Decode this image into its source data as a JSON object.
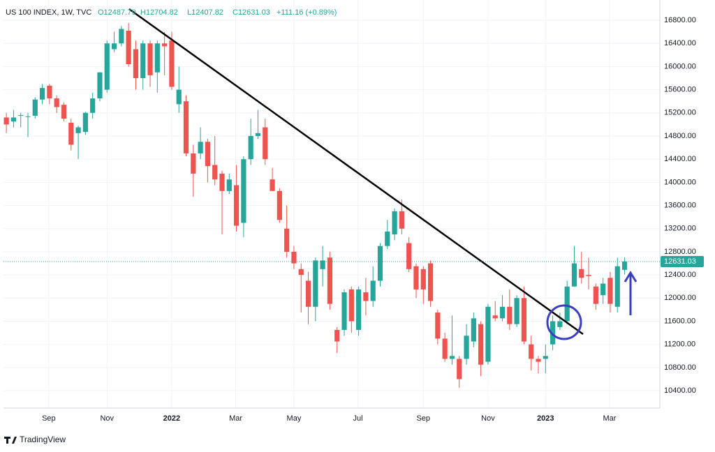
{
  "chart_data": {
    "type": "candlestick",
    "legend": {
      "symbol": "US 100 INDEX, 1W, TVC",
      "open": "O12487.79",
      "high": "H12704.82",
      "low": "L12407.82",
      "close": "C12631.03",
      "change": "+111.16 (+0.89%)"
    },
    "open": [
      15120,
      15050,
      15150,
      15130,
      15150,
      15430,
      15670,
      15450,
      15340,
      15030,
      14850,
      14870,
      15200,
      15450,
      15600,
      16300,
      16400,
      16620,
      16300,
      15800,
      16400,
      15900,
      16400,
      16450,
      15350,
      15400,
      14500,
      14500,
      14700,
      14300,
      14150,
      13850,
      13950,
      13300,
      14400,
      14800,
      14950,
      14050,
      13850,
      13200,
      12800,
      12500,
      12300,
      11850,
      12500,
      12700,
      11450,
      11450,
      12150,
      11450,
      12100,
      11950,
      12300,
      12900,
      13100,
      13500,
      12950,
      12550,
      12500,
      12600,
      11750,
      11300,
      10950,
      10950,
      10950,
      11250,
      11550,
      10900,
      11700,
      11650,
      11850,
      11550,
      12000,
      11200,
      10950,
      10950,
      11200,
      11500,
      11600,
      12200,
      12500,
      12400,
      12200,
      12050,
      12350,
      11850,
      12487.79
    ],
    "high": [
      15200,
      15250,
      15200,
      15200,
      15470,
      15700,
      15700,
      15500,
      15380,
      15100,
      14980,
      15220,
      15550,
      15900,
      16450,
      16600,
      16700,
      16750,
      16450,
      16450,
      16450,
      16450,
      16600,
      16600,
      16000,
      15500,
      14650,
      14950,
      14750,
      14800,
      14200,
      14150,
      14300,
      14450,
      15100,
      15250,
      15100,
      14250,
      13900,
      13600,
      12900,
      12600,
      12450,
      12700,
      12900,
      12800,
      11500,
      12150,
      12200,
      12200,
      12350,
      12550,
      12950,
      13350,
      13550,
      13700,
      13050,
      12600,
      12550,
      12650,
      11800,
      11400,
      11700,
      11000,
      11550,
      11750,
      11600,
      11900,
      11950,
      12050,
      12150,
      12050,
      12200,
      11350,
      11000,
      11200,
      11700,
      11750,
      12300,
      12900,
      12800,
      12700,
      12250,
      12350,
      12450,
      12700,
      12704.82
    ],
    "low": [
      14850,
      14950,
      14950,
      14780,
      15100,
      15350,
      15350,
      15200,
      15050,
      14550,
      14400,
      14820,
      15100,
      15400,
      15550,
      16250,
      16350,
      16000,
      15600,
      15600,
      15650,
      15550,
      15850,
      15600,
      15200,
      14450,
      13750,
      14400,
      14000,
      13950,
      13100,
      13800,
      13150,
      13050,
      14300,
      14750,
      14300,
      13850,
      13300,
      12700,
      12500,
      11750,
      11550,
      11600,
      12200,
      11800,
      11050,
      11350,
      11400,
      11350,
      11700,
      11850,
      12200,
      12850,
      13000,
      13100,
      12450,
      12000,
      11900,
      11850,
      11200,
      10900,
      10850,
      10450,
      10850,
      11150,
      10650,
      10850,
      11600,
      11600,
      11450,
      11500,
      11200,
      10750,
      10700,
      10700,
      11100,
      11450,
      11550,
      12200,
      12250,
      12150,
      11800,
      11900,
      11750,
      11750,
      12407.82
    ],
    "close": [
      15000,
      15120,
      15160,
      15140,
      15430,
      15630,
      15450,
      15300,
      15100,
      14650,
      14950,
      15200,
      15450,
      15900,
      16400,
      16400,
      16650,
      16040,
      15800,
      16400,
      15850,
      16400,
      16350,
      15650,
      15600,
      14500,
      14150,
      14700,
      14280,
      14050,
      13850,
      14050,
      13250,
      14400,
      14800,
      14850,
      14400,
      13850,
      13350,
      12800,
      12600,
      12400,
      11850,
      12650,
      12650,
      11900,
      11250,
      12100,
      11600,
      12150,
      11950,
      12300,
      12900,
      13150,
      13500,
      13200,
      12500,
      12150,
      12150,
      11950,
      11300,
      10950,
      11000,
      10600,
      11350,
      11650,
      10850,
      11850,
      11650,
      11850,
      11550,
      12000,
      11250,
      10950,
      10900,
      11000,
      11600,
      11600,
      12200,
      12600,
      12350,
      12380,
      11900,
      12250,
      11900,
      12550,
      12631.03
    ],
    "up_color": "#26a69a",
    "down_color": "#ef5350",
    "ylim": [
      10100,
      17150
    ],
    "yticks": [
      {
        "value": 10400,
        "label": "10400.00"
      },
      {
        "value": 10800,
        "label": "10800.00"
      },
      {
        "value": 11200,
        "label": "11200.00"
      },
      {
        "value": 11600,
        "label": "11600.00"
      },
      {
        "value": 12000,
        "label": "12000.00"
      },
      {
        "value": 12400,
        "label": "12400.00"
      },
      {
        "value": 12800,
        "label": "12800.00"
      },
      {
        "value": 13200,
        "label": "13200.00"
      },
      {
        "value": 13600,
        "label": "13600.00"
      },
      {
        "value": 14000,
        "label": "14000.00"
      },
      {
        "value": 14400,
        "label": "14400.00"
      },
      {
        "value": 14800,
        "label": "14800.00"
      },
      {
        "value": 15200,
        "label": "15200.00"
      },
      {
        "value": 15600,
        "label": "15600.00"
      },
      {
        "value": 16000,
        "label": "16000.00"
      },
      {
        "value": 16400,
        "label": "16400.00"
      },
      {
        "value": 16800,
        "label": "16800.00"
      }
    ],
    "xlim": [
      -0.4,
      90.9
    ],
    "xticks": [
      {
        "value": 5.9,
        "label": "Sep"
      },
      {
        "value": 14,
        "label": "Nov"
      },
      {
        "value": 23,
        "label": "2022"
      },
      {
        "value": 31.9,
        "label": "Mar"
      },
      {
        "value": 40,
        "label": "May"
      },
      {
        "value": 48.9,
        "label": "Jul"
      },
      {
        "value": 58,
        "label": "Sep"
      },
      {
        "value": 67,
        "label": "Nov"
      },
      {
        "value": 75,
        "label": "2023"
      },
      {
        "value": 83.9,
        "label": "Mar"
      }
    ],
    "last_price": {
      "value": 12631.03,
      "label": "12631.03"
    },
    "grid": true,
    "watermark": "TradingView"
  }
}
